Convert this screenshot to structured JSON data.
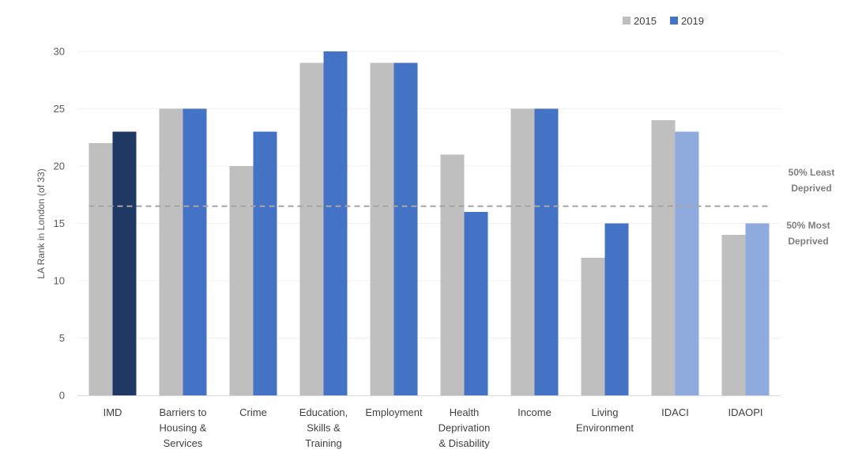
{
  "chart_data": {
    "type": "bar",
    "categories": [
      [
        "IMD"
      ],
      [
        "Barriers to",
        "Housing &",
        "Services"
      ],
      [
        "Crime"
      ],
      [
        "Education,",
        "Skills &",
        "Training"
      ],
      [
        "Employment"
      ],
      [
        "Health",
        "Deprivation",
        "& Disability"
      ],
      [
        "Income"
      ],
      [
        "Living",
        "Environment"
      ],
      [
        "IDACI"
      ],
      [
        "IDAOPI"
      ]
    ],
    "series": [
      {
        "name": "2015",
        "values": [
          22,
          25,
          20,
          29,
          29,
          21,
          25,
          12,
          24,
          14
        ],
        "color": "#bfbfbf"
      },
      {
        "name": "2019",
        "values": [
          23,
          25,
          23,
          30,
          29,
          16,
          25,
          15,
          23,
          15
        ],
        "color": "#4472c4",
        "point_colors": [
          "#203864",
          "#4472c4",
          "#4472c4",
          "#4472c4",
          "#4472c4",
          "#4472c4",
          "#4472c4",
          "#4472c4",
          "#8faadc",
          "#8faadc"
        ]
      }
    ],
    "title": "",
    "xlabel": "",
    "ylabel": "LA Rank in London (of 33)",
    "ylim": [
      0,
      30
    ],
    "yticks": [
      0,
      5,
      10,
      15,
      20,
      25,
      30
    ],
    "grid": true,
    "legend_position": "top-right",
    "reference_line": {
      "value": 16.5,
      "style": "dashed",
      "color": "#a6a6a6"
    },
    "annotations": [
      {
        "lines": [
          "50% Least",
          "Deprived"
        ],
        "position": "above-line"
      },
      {
        "lines": [
          "50% Most",
          "Deprived"
        ],
        "position": "below-line"
      }
    ]
  }
}
